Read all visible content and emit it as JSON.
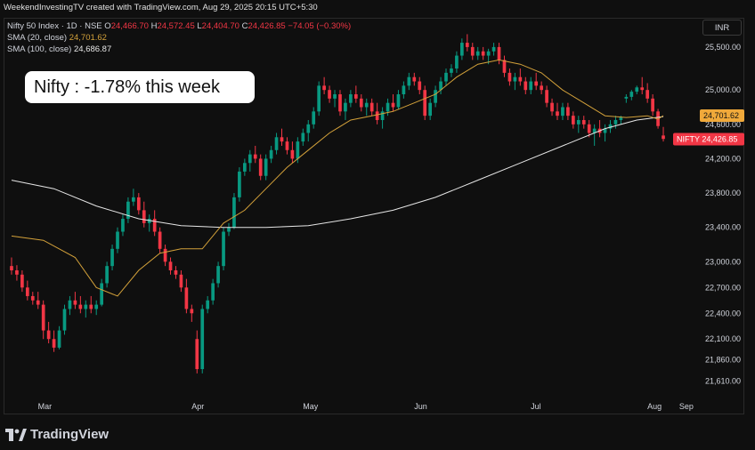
{
  "header": {
    "caption": "WeekendInvestingTV created with TradingView.com, Aug 29, 2025 20:15 UTC+5:30",
    "symbol_line": "Nifty 50 Index · 1D · NSE",
    "o_label": "O",
    "o_value": "24,466.70",
    "h_label": "H",
    "h_value": "24,572.45",
    "l_label": "L",
    "l_value": "24,404.70",
    "c_label": "C",
    "c_value": "24,426.85",
    "change": "−74.05 (−0.30%)",
    "sma20_label": "SMA (20, close)",
    "sma20_value": "24,701.62",
    "sma100_label": "SMA (100, close)",
    "sma100_value": "24,686.87",
    "currency": "INR"
  },
  "annotation": "Nifty : -1.78% this week",
  "footer": {
    "brand": "TradingView",
    "logo_icon": "tradingview-logo-icon"
  },
  "colors": {
    "up": "#089981",
    "down": "#f23645",
    "sma20": "#d3a13a",
    "sma100": "#e6e6e6",
    "background": "#0f0f0f"
  },
  "chart_data": {
    "type": "candlestick",
    "title": "",
    "y_ticks": [
      21610,
      21860,
      22100,
      22400,
      22700,
      23000,
      23400,
      23800,
      24200,
      24600,
      25000,
      25500
    ],
    "ylim": [
      21450,
      25820
    ],
    "x_ticks": [
      "Mar",
      "Apr",
      "May",
      "Jun",
      "Jul",
      "Aug",
      "Sep"
    ],
    "price_badges": [
      {
        "name": "SMA 20",
        "value": 24701.62,
        "label": "24,701.62"
      },
      {
        "name": "NIFTY",
        "value": 24426.85,
        "label": "NIFTY 24,426.85"
      }
    ],
    "ohlc": [
      [
        22950,
        23050,
        22850,
        22900
      ],
      [
        22900,
        22960,
        22780,
        22850
      ],
      [
        22850,
        22900,
        22650,
        22700
      ],
      [
        22700,
        22780,
        22550,
        22600
      ],
      [
        22600,
        22650,
        22500,
        22550
      ],
      [
        22550,
        22650,
        22450,
        22500
      ],
      [
        22500,
        22550,
        22100,
        22200
      ],
      [
        22200,
        22300,
        22050,
        22100
      ],
      [
        22100,
        22200,
        21950,
        22000
      ],
      [
        22000,
        22250,
        21980,
        22200
      ],
      [
        22200,
        22500,
        22150,
        22450
      ],
      [
        22450,
        22600,
        22380,
        22550
      ],
      [
        22550,
        22650,
        22450,
        22500
      ],
      [
        22500,
        22600,
        22400,
        22450
      ],
      [
        22450,
        22550,
        22350,
        22500
      ],
      [
        22500,
        22600,
        22400,
        22450
      ],
      [
        22450,
        22550,
        22380,
        22500
      ],
      [
        22500,
        22800,
        22480,
        22750
      ],
      [
        22750,
        23000,
        22700,
        22950
      ],
      [
        22950,
        23200,
        22900,
        23150
      ],
      [
        23150,
        23400,
        23100,
        23350
      ],
      [
        23350,
        23550,
        23300,
        23500
      ],
      [
        23500,
        23750,
        23450,
        23700
      ],
      [
        23700,
        23850,
        23650,
        23750
      ],
      [
        23750,
        23800,
        23550,
        23600
      ],
      [
        23600,
        23700,
        23400,
        23450
      ],
      [
        23450,
        23550,
        23350,
        23500
      ],
      [
        23500,
        23600,
        23300,
        23350
      ],
      [
        23350,
        23400,
        23100,
        23150
      ],
      [
        23150,
        23200,
        22950,
        23000
      ],
      [
        23000,
        23050,
        22850,
        22900
      ],
      [
        22900,
        22950,
        22800,
        22850
      ],
      [
        22850,
        22900,
        22650,
        22700
      ],
      [
        22700,
        22800,
        22400,
        22450
      ],
      [
        22450,
        22500,
        22300,
        22400
      ],
      [
        22100,
        22200,
        21700,
        21750
      ],
      [
        21750,
        22500,
        21700,
        22450
      ],
      [
        22450,
        22600,
        22400,
        22550
      ],
      [
        22550,
        22800,
        22500,
        22750
      ],
      [
        22750,
        23000,
        22700,
        22950
      ],
      [
        22950,
        23400,
        22900,
        23350
      ],
      [
        23350,
        23450,
        23300,
        23400
      ],
      [
        23400,
        23800,
        23380,
        23750
      ],
      [
        23750,
        24100,
        23700,
        24050
      ],
      [
        24050,
        24200,
        24000,
        24150
      ],
      [
        24150,
        24300,
        24050,
        24250
      ],
      [
        24250,
        24350,
        24150,
        24200
      ],
      [
        24200,
        24250,
        23950,
        24000
      ],
      [
        24000,
        24250,
        23950,
        24200
      ],
      [
        24200,
        24350,
        24150,
        24300
      ],
      [
        24300,
        24500,
        24250,
        24450
      ],
      [
        24450,
        24550,
        24350,
        24400
      ],
      [
        24400,
        24450,
        24250,
        24300
      ],
      [
        24300,
        24400,
        24150,
        24200
      ],
      [
        24200,
        24450,
        24150,
        24400
      ],
      [
        24400,
        24550,
        24350,
        24500
      ],
      [
        24500,
        24650,
        24400,
        24600
      ],
      [
        24600,
        24800,
        24550,
        24750
      ],
      [
        24750,
        25100,
        24700,
        25050
      ],
      [
        25050,
        25150,
        24950,
        25000
      ],
      [
        25000,
        25050,
        24850,
        24900
      ],
      [
        24900,
        25000,
        24800,
        24950
      ],
      [
        24950,
        25000,
        24700,
        24750
      ],
      [
        24750,
        24900,
        24650,
        24850
      ],
      [
        24850,
        25000,
        24800,
        24950
      ],
      [
        24950,
        25050,
        24850,
        24900
      ],
      [
        24900,
        24950,
        24750,
        24800
      ],
      [
        24800,
        24900,
        24700,
        24850
      ],
      [
        24850,
        24900,
        24700,
        24750
      ],
      [
        24750,
        24850,
        24600,
        24650
      ],
      [
        24650,
        24800,
        24550,
        24750
      ],
      [
        24750,
        24900,
        24700,
        24850
      ],
      [
        24850,
        24950,
        24750,
        24800
      ],
      [
        24800,
        25000,
        24780,
        24950
      ],
      [
        24950,
        25100,
        24900,
        25050
      ],
      [
        25050,
        25200,
        25000,
        25150
      ],
      [
        25150,
        25200,
        25050,
        25100
      ],
      [
        25100,
        25150,
        24950,
        25000
      ],
      [
        25000,
        25050,
        24650,
        24700
      ],
      [
        24700,
        24900,
        24650,
        24850
      ],
      [
        24850,
        25050,
        24800,
        25000
      ],
      [
        25000,
        25150,
        24950,
        25100
      ],
      [
        25100,
        25250,
        25050,
        25200
      ],
      [
        25200,
        25300,
        25150,
        25250
      ],
      [
        25250,
        25450,
        25200,
        25400
      ],
      [
        25400,
        25600,
        25350,
        25550
      ],
      [
        25550,
        25650,
        25450,
        25500
      ],
      [
        25500,
        25550,
        25350,
        25400
      ],
      [
        25400,
        25500,
        25350,
        25450
      ],
      [
        25450,
        25500,
        25350,
        25400
      ],
      [
        25400,
        25480,
        25300,
        25450
      ],
      [
        25450,
        25550,
        25400,
        25500
      ],
      [
        25500,
        25550,
        25300,
        25350
      ],
      [
        25350,
        25400,
        25150,
        25200
      ],
      [
        25200,
        25250,
        25050,
        25100
      ],
      [
        25100,
        25200,
        25000,
        25150
      ],
      [
        25150,
        25250,
        25050,
        25100
      ],
      [
        25100,
        25150,
        24950,
        25000
      ],
      [
        25000,
        25150,
        24950,
        25100
      ],
      [
        25100,
        25200,
        25000,
        25050
      ],
      [
        25050,
        25100,
        24950,
        25000
      ],
      [
        25000,
        25050,
        24800,
        24850
      ],
      [
        24850,
        24900,
        24700,
        24750
      ],
      [
        24750,
        24850,
        24650,
        24700
      ],
      [
        24700,
        24850,
        24650,
        24800
      ],
      [
        24800,
        24850,
        24650,
        24700
      ],
      [
        24700,
        24750,
        24550,
        24600
      ],
      [
        24600,
        24700,
        24500,
        24650
      ],
      [
        24650,
        24700,
        24550,
        24600
      ],
      [
        24600,
        24650,
        24450,
        24500
      ],
      [
        24500,
        24600,
        24350,
        24550
      ],
      [
        24550,
        24650,
        24450,
        24500
      ],
      [
        24500,
        24600,
        24400,
        24550
      ],
      [
        24550,
        24650,
        24500,
        24600
      ],
      [
        24600,
        24700,
        24550,
        24650
      ],
      [
        24650,
        24700,
        24600,
        24680
      ],
      [
        24900,
        24950,
        24850,
        24920
      ],
      [
        24920,
        25000,
        24880,
        24980
      ],
      [
        24980,
        25050,
        24950,
        25030
      ],
      [
        25030,
        25150,
        24950,
        25000
      ],
      [
        25000,
        25080,
        24850,
        24900
      ],
      [
        24900,
        24950,
        24700,
        24750
      ],
      [
        24750,
        24780,
        24550,
        24580
      ],
      [
        24470,
        24570,
        24400,
        24430
      ]
    ],
    "sma20": [
      [
        0,
        23300
      ],
      [
        6,
        23250
      ],
      [
        12,
        23050
      ],
      [
        16,
        22700
      ],
      [
        20,
        22600
      ],
      [
        24,
        22900
      ],
      [
        28,
        23100
      ],
      [
        32,
        23150
      ],
      [
        36,
        23150
      ],
      [
        40,
        23450
      ],
      [
        44,
        23600
      ],
      [
        48,
        23850
      ],
      [
        52,
        24100
      ],
      [
        56,
        24300
      ],
      [
        60,
        24500
      ],
      [
        64,
        24650
      ],
      [
        68,
        24700
      ],
      [
        72,
        24750
      ],
      [
        76,
        24850
      ],
      [
        80,
        24950
      ],
      [
        84,
        25150
      ],
      [
        88,
        25300
      ],
      [
        92,
        25350
      ],
      [
        96,
        25300
      ],
      [
        100,
        25200
      ],
      [
        104,
        25000
      ],
      [
        108,
        24850
      ],
      [
        112,
        24700
      ],
      [
        116,
        24680
      ],
      [
        120,
        24700
      ],
      [
        122,
        24660
      ],
      [
        123,
        24702
      ]
    ],
    "sma100": [
      [
        0,
        23950
      ],
      [
        8,
        23850
      ],
      [
        16,
        23650
      ],
      [
        24,
        23500
      ],
      [
        32,
        23420
      ],
      [
        40,
        23400
      ],
      [
        48,
        23400
      ],
      [
        56,
        23420
      ],
      [
        64,
        23500
      ],
      [
        72,
        23600
      ],
      [
        80,
        23750
      ],
      [
        88,
        23950
      ],
      [
        96,
        24150
      ],
      [
        104,
        24350
      ],
      [
        112,
        24550
      ],
      [
        118,
        24650
      ],
      [
        123,
        24690
      ]
    ]
  }
}
